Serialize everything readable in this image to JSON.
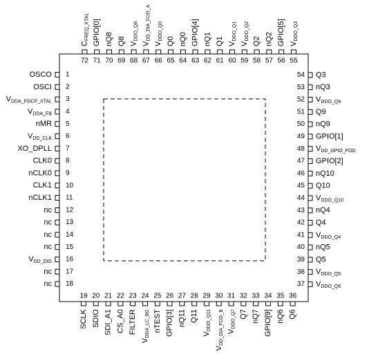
{
  "pins": [
    {
      "number": 1,
      "label": "OSCO"
    },
    {
      "number": 2,
      "label": "OSCI"
    },
    {
      "number": 3,
      "label": "V",
      "sub": "DDA_PDCP_XTAL"
    },
    {
      "number": 4,
      "label": "V",
      "sub": "DDA_FB"
    },
    {
      "number": 5,
      "label": "nMR"
    },
    {
      "number": 6,
      "label": "V",
      "sub": "DD_CLK"
    },
    {
      "number": 7,
      "label": "XO_DPLL"
    },
    {
      "number": 8,
      "label": "CLK0"
    },
    {
      "number": 9,
      "label": "nCLK0"
    },
    {
      "number": 10,
      "label": "CLK1"
    },
    {
      "number": 11,
      "label": "nCLK1"
    },
    {
      "number": 12,
      "label": "nc"
    },
    {
      "number": 13,
      "label": "nc"
    },
    {
      "number": 14,
      "label": "nc"
    },
    {
      "number": 15,
      "label": "nc"
    },
    {
      "number": 16,
      "label": "V",
      "sub": "DD_DIG"
    },
    {
      "number": 17,
      "label": "nc"
    },
    {
      "number": 18,
      "label": "nc"
    },
    {
      "number": 19,
      "label": "SCLK"
    },
    {
      "number": 20,
      "label": "SDIO"
    },
    {
      "number": 21,
      "label": "SDI_A1"
    },
    {
      "number": 22,
      "label": "CS_A0"
    },
    {
      "number": 23,
      "label": "FILTER"
    },
    {
      "number": 24,
      "label": "V",
      "sub": "DDA_LC_BG"
    },
    {
      "number": 25,
      "label": "nTEST"
    },
    {
      "number": 26,
      "label": "GPIO[3]"
    },
    {
      "number": 27,
      "label": "nQ11"
    },
    {
      "number": 28,
      "label": "Q11"
    },
    {
      "number": 29,
      "label": "V",
      "sub": "DDO_Q11"
    },
    {
      "number": 30,
      "label": "V",
      "sub": "DD_DIA_FOD_B"
    },
    {
      "number": 31,
      "label": "V",
      "sub": "DDO_Q7"
    },
    {
      "number": 32,
      "label": "Q7"
    },
    {
      "number": 33,
      "label": "nQ7"
    },
    {
      "number": 34,
      "label": "GPIO[9]"
    },
    {
      "number": 35,
      "label": "nQ6"
    },
    {
      "number": 36,
      "label": "Q6"
    },
    {
      "number": 37,
      "label": "V",
      "sub": "DDO_Q6"
    },
    {
      "number": 38,
      "label": "V",
      "sub": "DDO_Q5"
    },
    {
      "number": 39,
      "label": "Q5"
    },
    {
      "number": 40,
      "label": "nQ5"
    },
    {
      "number": 41,
      "label": "V",
      "sub": "DDO_Q4"
    },
    {
      "number": 42,
      "label": "Q4"
    },
    {
      "number": 43,
      "label": "nQ4"
    },
    {
      "number": 44,
      "label": "V",
      "sub": "DDO_Q10"
    },
    {
      "number": 45,
      "label": "Q10"
    },
    {
      "number": 46,
      "label": "nQ10"
    },
    {
      "number": 47,
      "label": "GPIO[2]"
    },
    {
      "number": 48,
      "label": "V",
      "sub": "DD_GPIO_FOD"
    },
    {
      "number": 49,
      "label": "GPIO[1]"
    },
    {
      "number": 50,
      "label": "nQ9"
    },
    {
      "number": 51,
      "label": "Q9"
    },
    {
      "number": 52,
      "label": "V",
      "sub": "DDO_Q9"
    },
    {
      "number": 53,
      "label": "nQ3"
    },
    {
      "number": 54,
      "label": "Q3"
    },
    {
      "number": 55,
      "label": "V",
      "sub": "DDO_Q3"
    },
    {
      "number": 56,
      "label": "GPIO[5]"
    },
    {
      "number": 57,
      "label": "nQ2"
    },
    {
      "number": 58,
      "label": "Q2"
    },
    {
      "number": 59,
      "label": "V",
      "sub": "DDO_Q2"
    },
    {
      "number": 60,
      "label": "V",
      "sub": "DDO_Q1"
    },
    {
      "number": 61,
      "label": "Q1"
    },
    {
      "number": 62,
      "label": "nQ1"
    },
    {
      "number": 63,
      "label": "GPIO[4]"
    },
    {
      "number": 64,
      "label": "nQ0"
    },
    {
      "number": 65,
      "label": "Q0"
    },
    {
      "number": 66,
      "label": "V",
      "sub": "DDO_Q0"
    },
    {
      "number": 67,
      "label": "V",
      "sub": "DD_DIA_FOD_A"
    },
    {
      "number": 68,
      "label": "V",
      "sub": "DDO_Q8"
    },
    {
      "number": 69,
      "label": "Q8"
    },
    {
      "number": 70,
      "label": "nQ8"
    },
    {
      "number": 71,
      "label": "GPIO[0]"
    },
    {
      "number": 72,
      "label": "C",
      "sub": "FREQ_XTAL"
    }
  ]
}
